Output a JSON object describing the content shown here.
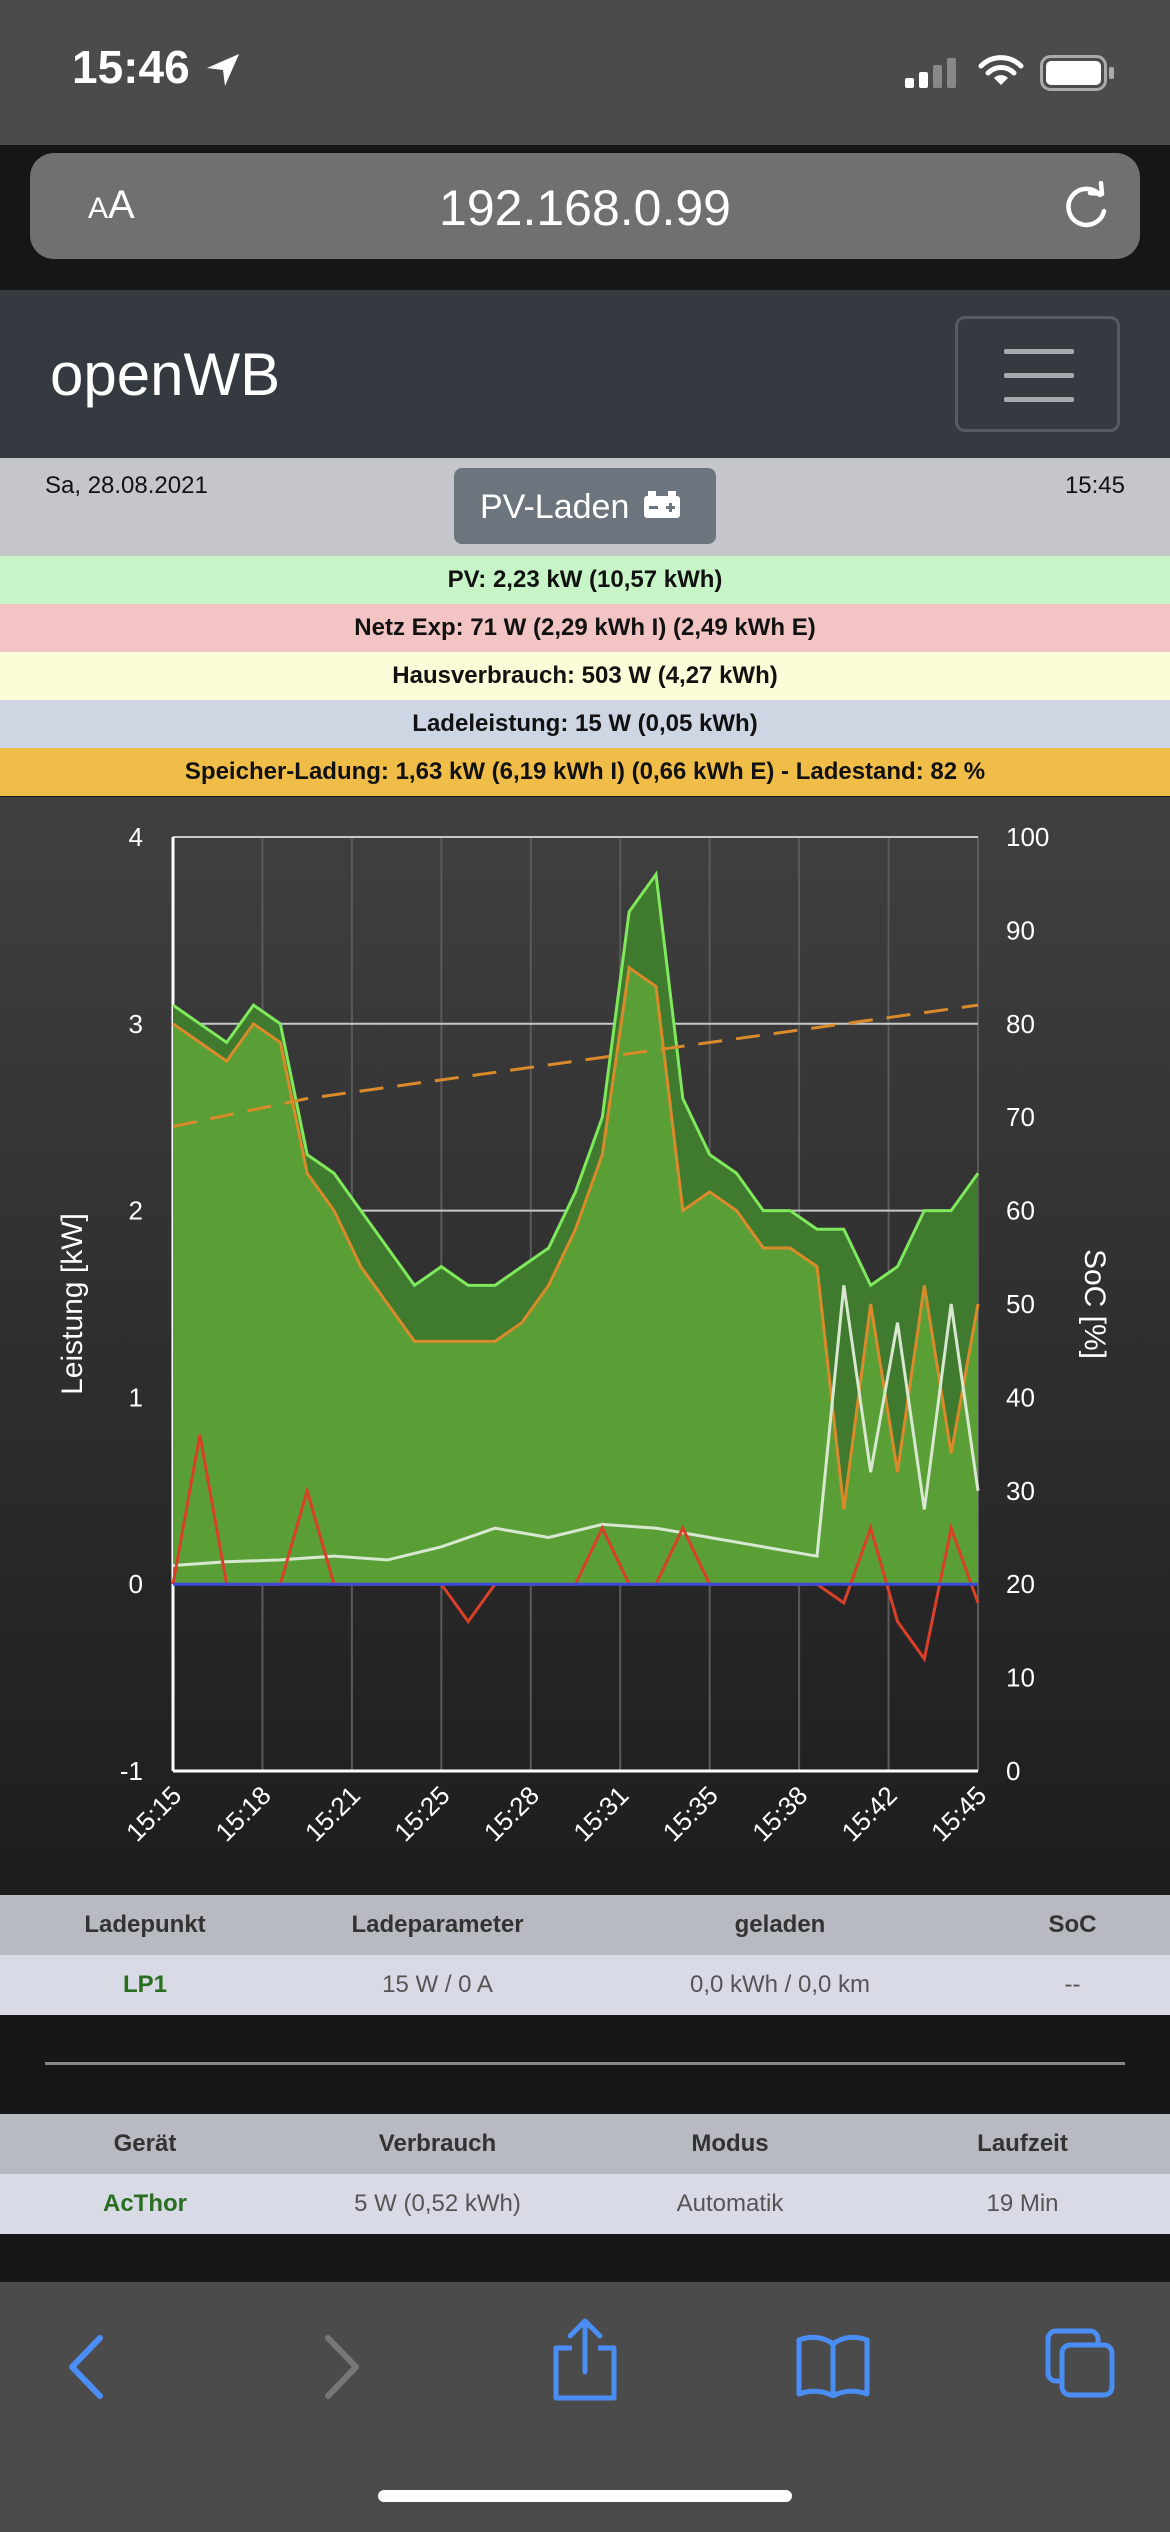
{
  "status_bar": {
    "time": "15:46"
  },
  "browser": {
    "aa_label_small": "A",
    "aa_label_big": "A",
    "url": "192.168.0.99"
  },
  "header": {
    "brand": "openWB"
  },
  "info": {
    "date": "Sa, 28.08.2021",
    "time": "15:45",
    "mode_label": "PV-Laden"
  },
  "stats": [
    {
      "text": "PV: 2,23 kW (10,57 kWh)",
      "bg": "#c8f5c8"
    },
    {
      "text": "Netz Exp: 71 W (2,29 kWh I) (2,49 kWh E)",
      "bg": "#f3c4c4"
    },
    {
      "text": "Hausverbrauch: 503 W (4,27 kWh)",
      "bg": "#fdfcd8"
    },
    {
      "text": "Ladeleistung: 15 W (0,05 kWh)",
      "bg": "#cfd6e3"
    },
    {
      "text": "Speicher-Ladung: 1,63 kW (6,19 kWh I) (0,66 kWh E) - Ladestand: 82 %",
      "bg": "#f0bd48"
    }
  ],
  "chart_data": {
    "type": "area",
    "ylabel_left": "Leistung [kW]",
    "ylabel_right": "SoC [%]",
    "y_left_ticks": [
      "4",
      "3",
      "2",
      "1",
      "0",
      "-1"
    ],
    "y_right_ticks": [
      "100",
      "90",
      "80",
      "70",
      "60",
      "50",
      "40",
      "30",
      "20",
      "10",
      "0"
    ],
    "ylim_left": [
      -1,
      4
    ],
    "ylim_right": [
      0,
      100
    ],
    "x_ticks": [
      "15:15",
      "15:18",
      "15:21",
      "15:25",
      "15:28",
      "15:31",
      "15:35",
      "15:38",
      "15:42",
      "15:45"
    ],
    "grid": true,
    "series": [
      {
        "name": "",
        "color": "#7fe85c",
        "x": [
          0,
          1,
          2,
          3,
          4,
          5,
          6,
          7,
          8,
          9,
          10,
          11,
          12,
          13,
          14,
          15,
          16,
          17,
          18,
          19,
          20,
          21,
          22,
          23,
          24,
          25,
          26,
          27,
          28,
          29,
          30
        ],
        "values": [
          3.1,
          3.0,
          2.9,
          3.1,
          3.0,
          2.3,
          2.2,
          2.0,
          1.8,
          1.6,
          1.7,
          1.6,
          1.6,
          1.7,
          1.8,
          2.1,
          2.5,
          3.6,
          3.8,
          2.6,
          2.3,
          2.2,
          2.0,
          2.0,
          1.9,
          1.9,
          1.6,
          1.7,
          2.0,
          2.0,
          2.2
        ]
      },
      {
        "name": "",
        "color": "#d98a2b",
        "x": [
          0,
          1,
          2,
          3,
          4,
          5,
          6,
          7,
          8,
          9,
          10,
          11,
          12,
          13,
          14,
          15,
          16,
          17,
          18,
          19,
          20,
          21,
          22,
          23,
          24,
          25,
          26,
          27,
          28,
          29,
          30
        ],
        "values": [
          3.0,
          2.9,
          2.8,
          3.0,
          2.9,
          2.2,
          2.0,
          1.7,
          1.5,
          1.3,
          1.3,
          1.3,
          1.3,
          1.4,
          1.6,
          1.9,
          2.3,
          3.3,
          3.2,
          2.0,
          2.1,
          2.0,
          1.8,
          1.8,
          1.7,
          0.4,
          1.5,
          0.6,
          1.6,
          0.7,
          1.5
        ]
      },
      {
        "name": "",
        "color": "#d8e8d0",
        "x": [
          0,
          2,
          4,
          6,
          8,
          10,
          12,
          14,
          16,
          18,
          20,
          22,
          24,
          25,
          26,
          27,
          28,
          29,
          30
        ],
        "values": [
          0.1,
          0.12,
          0.13,
          0.15,
          0.13,
          0.2,
          0.3,
          0.25,
          0.32,
          0.3,
          0.25,
          0.2,
          0.15,
          1.6,
          0.6,
          1.4,
          0.4,
          1.5,
          0.5
        ]
      },
      {
        "name": "",
        "color": "#d8402a",
        "x": [
          0,
          1,
          2,
          3,
          4,
          5,
          6,
          7,
          8,
          9,
          10,
          11,
          12,
          13,
          14,
          15,
          16,
          17,
          18,
          19,
          20,
          21,
          22,
          23,
          24,
          25,
          26,
          27,
          28,
          29,
          30
        ],
        "values": [
          0,
          0.8,
          0,
          0,
          0,
          0.5,
          0,
          0,
          0,
          0,
          0,
          -0.2,
          0,
          0,
          0,
          0,
          0.3,
          0,
          0,
          0.3,
          0,
          0,
          0,
          0,
          0,
          -0.1,
          0.3,
          -0.2,
          -0.4,
          0.3,
          -0.1
        ]
      },
      {
        "name": "",
        "color": "#3a4adf",
        "x": [
          0,
          5,
          10,
          15,
          20,
          25,
          30
        ],
        "values": [
          0,
          0,
          0,
          0,
          0,
          0,
          0
        ]
      },
      {
        "name": "",
        "axis": "right",
        "color": "#d98a2b",
        "dashed": true,
        "x": [
          0,
          5,
          10,
          15,
          20,
          25,
          30
        ],
        "values": [
          69,
          72,
          74,
          76,
          78,
          80,
          82
        ]
      }
    ]
  },
  "lp_table": {
    "headers": [
      "Ladepunkt",
      "Ladeparameter",
      "geladen",
      "SoC"
    ],
    "row": [
      "LP1",
      "15 W / 0 A",
      "0,0 kWh / 0,0 km",
      "--"
    ]
  },
  "device_table": {
    "headers": [
      "Gerät",
      "Verbrauch",
      "Modus",
      "Laufzeit"
    ],
    "row": [
      "AcThor",
      "5 W (0,52 kWh)",
      "Automatik",
      "19 Min"
    ]
  }
}
